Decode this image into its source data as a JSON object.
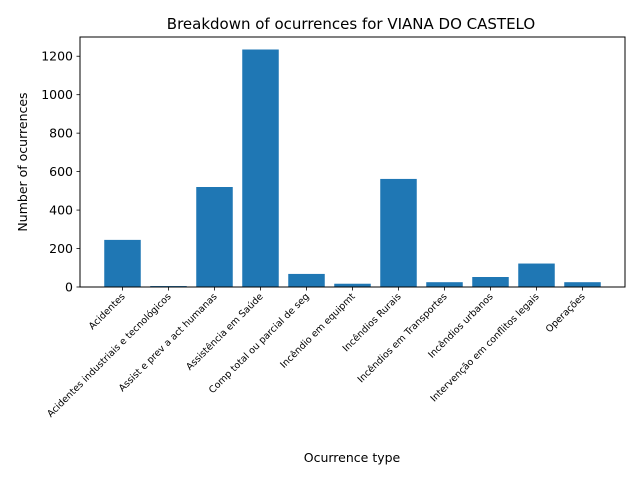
{
  "chart_data": {
    "type": "bar",
    "title": "Breakdown of ocurrences for VIANA DO CASTELO",
    "xlabel": "Ocurrence type",
    "ylabel": "Number of ocurrences",
    "ylim": [
      0,
      1300
    ],
    "yticks": [
      0,
      200,
      400,
      600,
      800,
      1000,
      1200
    ],
    "grid": false,
    "bar_color": "#1f77b4",
    "categories": [
      "Acidentes",
      "Acidentes industriais e tecnológicos",
      "Assist e prev a act humanas",
      "Assistência em Saúde",
      "Comp total ou parcial de seg",
      "Incêndio em equipmt",
      "Incêndios Rurais",
      "Incêndios em Transportes",
      "Incêndios urbanos",
      "Intervenção em conflitos legais",
      "Operações"
    ],
    "values": [
      245,
      5,
      520,
      1235,
      68,
      17,
      562,
      25,
      52,
      122,
      25
    ]
  }
}
